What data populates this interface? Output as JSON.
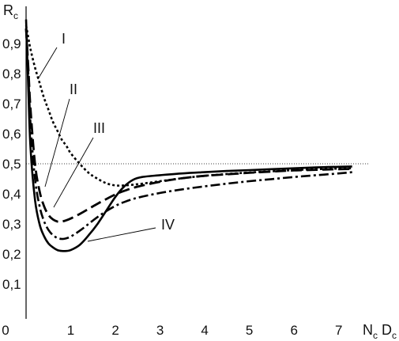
{
  "chart_data": {
    "type": "line",
    "title": "",
    "xlabel": {
      "main": "N",
      "sub1": "c",
      "mid": " D",
      "sub2": "c"
    },
    "ylabel": {
      "main": "R",
      "sub": "c"
    },
    "xlim": [
      0,
      7.5
    ],
    "ylim": [
      0,
      1.0
    ],
    "x_ticks": [
      0,
      1,
      2,
      3,
      4,
      5,
      6,
      7
    ],
    "x_tick_labels": [
      "0",
      "1",
      "2",
      "3",
      "4",
      "5",
      "6",
      "7"
    ],
    "y_ticks": [
      0.1,
      0.2,
      0.3,
      0.4,
      0.5,
      0.6,
      0.7,
      0.8,
      0.9
    ],
    "y_tick_labels": [
      "0,1",
      "0,2",
      "0,3",
      "0,4",
      "0,5",
      "0,6",
      "0,7",
      "0,8",
      "0,9"
    ],
    "reference_line": {
      "y": 0.5,
      "style": "dotted"
    },
    "grid": false,
    "legend": "none",
    "series": [
      {
        "name": "I",
        "style": "dotted",
        "x": [
          0.0,
          0.05,
          0.1,
          0.2,
          0.3,
          0.4,
          0.5,
          0.6,
          0.7,
          0.8,
          0.9,
          1.0,
          1.2,
          1.4,
          1.6,
          1.8,
          2.0,
          2.2,
          2.5,
          3.0,
          3.5,
          4.0,
          4.5,
          5.0,
          5.5,
          6.0,
          6.5,
          7.0,
          7.3
        ],
        "y": [
          0.96,
          0.92,
          0.88,
          0.82,
          0.77,
          0.72,
          0.68,
          0.64,
          0.61,
          0.58,
          0.56,
          0.535,
          0.5,
          0.47,
          0.45,
          0.435,
          0.428,
          0.428,
          0.432,
          0.442,
          0.452,
          0.46,
          0.466,
          0.471,
          0.475,
          0.479,
          0.482,
          0.484,
          0.485
        ]
      },
      {
        "name": "II",
        "style": "dashed",
        "x": [
          0.0,
          0.05,
          0.1,
          0.2,
          0.3,
          0.4,
          0.5,
          0.6,
          0.7,
          0.8,
          0.9,
          1.0,
          1.2,
          1.4,
          1.6,
          1.8,
          2.0,
          2.2,
          2.5,
          3.0,
          3.5,
          4.0,
          4.5,
          5.0,
          5.5,
          6.0,
          6.5,
          7.0,
          7.3
        ],
        "y": [
          0.95,
          0.82,
          0.68,
          0.5,
          0.41,
          0.36,
          0.33,
          0.315,
          0.308,
          0.308,
          0.312,
          0.318,
          0.333,
          0.35,
          0.367,
          0.383,
          0.398,
          0.41,
          0.424,
          0.44,
          0.452,
          0.46,
          0.465,
          0.47,
          0.474,
          0.478,
          0.48,
          0.482,
          0.483
        ]
      },
      {
        "name": "III",
        "style": "dash-dot",
        "x": [
          0.0,
          0.05,
          0.1,
          0.2,
          0.3,
          0.4,
          0.5,
          0.6,
          0.7,
          0.8,
          0.9,
          1.0,
          1.2,
          1.4,
          1.6,
          1.8,
          2.0,
          2.2,
          2.5,
          3.0,
          3.5,
          4.0,
          4.5,
          5.0,
          5.5,
          6.0,
          6.5,
          7.0,
          7.3
        ],
        "y": [
          0.95,
          0.8,
          0.63,
          0.45,
          0.36,
          0.31,
          0.28,
          0.263,
          0.253,
          0.25,
          0.252,
          0.258,
          0.277,
          0.3,
          0.323,
          0.343,
          0.36,
          0.373,
          0.387,
          0.403,
          0.415,
          0.425,
          0.434,
          0.442,
          0.449,
          0.456,
          0.462,
          0.468,
          0.472
        ]
      },
      {
        "name": "IV",
        "style": "solid",
        "x": [
          0.0,
          0.05,
          0.1,
          0.2,
          0.3,
          0.4,
          0.5,
          0.6,
          0.7,
          0.8,
          0.9,
          1.0,
          1.2,
          1.4,
          1.6,
          1.8,
          2.0,
          2.2,
          2.4,
          2.6,
          3.0,
          3.5,
          4.0,
          4.5,
          5.0,
          5.5,
          6.0,
          6.5,
          7.0,
          7.3
        ],
        "y": [
          0.98,
          0.75,
          0.55,
          0.38,
          0.3,
          0.26,
          0.235,
          0.222,
          0.213,
          0.21,
          0.21,
          0.213,
          0.23,
          0.262,
          0.3,
          0.345,
          0.39,
          0.425,
          0.447,
          0.456,
          0.462,
          0.468,
          0.472,
          0.476,
          0.479,
          0.482,
          0.485,
          0.488,
          0.49,
          0.491
        ]
      }
    ],
    "annotations": [
      {
        "text": "I",
        "series": "I"
      },
      {
        "text": "II",
        "series": "II"
      },
      {
        "text": "III",
        "series": "III"
      },
      {
        "text": "IV",
        "series": "IV"
      }
    ]
  }
}
